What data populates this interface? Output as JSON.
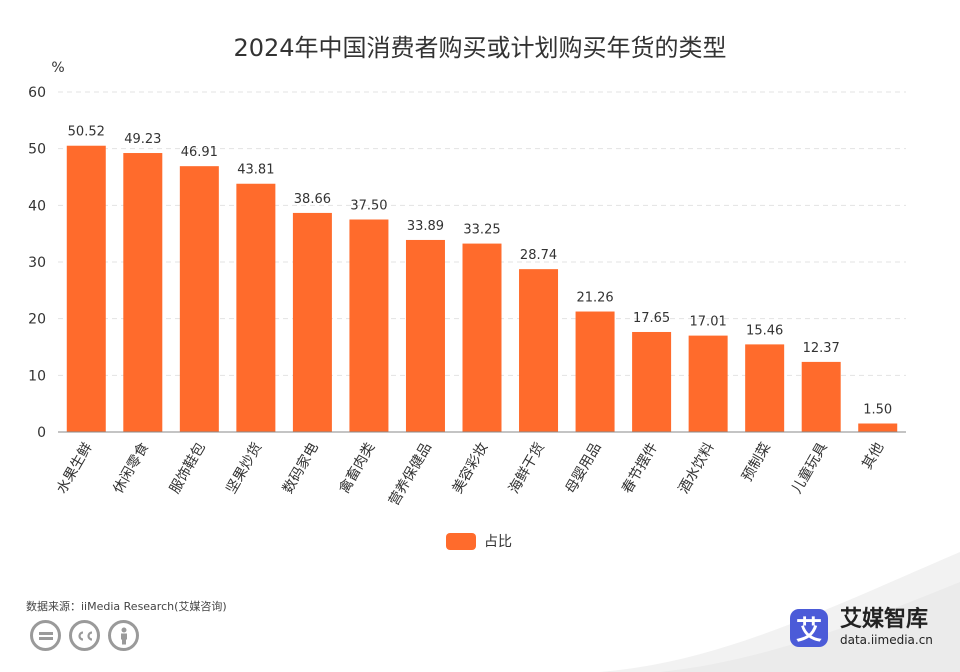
{
  "chart_data": {
    "type": "bar",
    "title": "2024年中国消费者购买或计划购买年货的类型",
    "ylabel": "%",
    "ylim": [
      0,
      60
    ],
    "yticks": [
      0,
      10,
      20,
      30,
      40,
      50,
      60
    ],
    "grid": true,
    "legend_position": "bottom",
    "categories": [
      "水果生鲜",
      "休闲零食",
      "服饰鞋包",
      "坚果炒货",
      "数码家电",
      "禽畜肉类",
      "营养保健品",
      "美容彩妆",
      "海鲜干货",
      "母婴用品",
      "春节摆件",
      "酒水饮料",
      "预制菜",
      "儿童玩具",
      "其他"
    ],
    "series": [
      {
        "name": "占比",
        "color": "#ff6b2c",
        "values": [
          50.52,
          49.23,
          46.91,
          43.81,
          38.66,
          37.5,
          33.89,
          33.25,
          28.74,
          21.26,
          17.65,
          17.01,
          15.46,
          12.37,
          1.5
        ],
        "labels": [
          "50.52",
          "49.23",
          "46.91",
          "43.81",
          "38.66",
          "37.50",
          "33.89",
          "33.25",
          "28.74",
          "21.26",
          "17.65",
          "17.01",
          "15.46",
          "12.37",
          "1.50"
        ]
      }
    ]
  },
  "footer": {
    "source": "数据来源：iiMedia Research(艾媒咨询)",
    "cc_icons": [
      "equals-icon",
      "cc-icon",
      "person-icon"
    ]
  },
  "brand": {
    "logo_char": "艾",
    "name": "艾媒智库",
    "url": "data.iimedia.cn"
  },
  "colors": {
    "bar": "#ff6b2c",
    "brand": "#4b5bd8"
  }
}
